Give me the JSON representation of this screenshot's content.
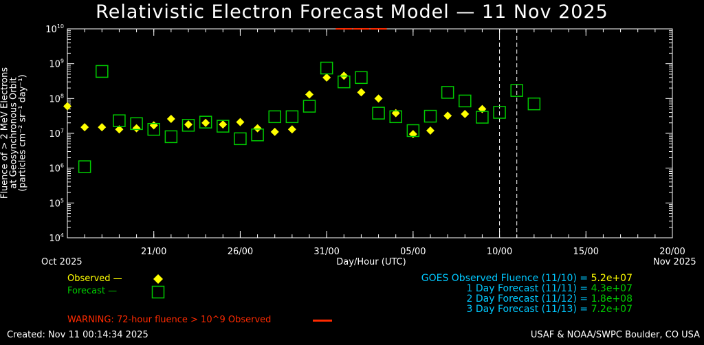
{
  "title": "Relativistic Electron Forecast Model — 11 Nov 2025",
  "ylabel_lines": [
    "Fluence of > 2 MeV Electrons",
    "at Geosynchronous Orbit",
    "(particles cm⁻² sr⁻¹ day⁻¹)"
  ],
  "xlabel": "Day/Hour (UTC)",
  "x_start_label": "Oct 2025",
  "x_end_label": "Nov 2025",
  "legend": {
    "observed_label": "Observed —",
    "forecast_label": "Forecast —"
  },
  "stats": {
    "goes": "GOES Observed Fluence (11/10) = ",
    "goes_value": "5.2e+07",
    "day1": "1 Day Forecast (11/11) = ",
    "day1_value": "4.3e+07",
    "day2": "2 Day Forecast (11/12) = ",
    "day2_value": "1.8e+08",
    "day3": "3 Day Forecast (11/13) = ",
    "day3_value": "7.2e+07"
  },
  "warning": "WARNING: 72-hour fluence > 10^9 Observed",
  "footer_left": "Created: Nov 11 00:14:34 2025",
  "footer_right": "USAF & NOAA/SWPC Boulder, CO USA",
  "colors": {
    "observed": "#ffff00",
    "forecast": "#00cc00",
    "warning": "#ff2a00",
    "stats_label": "#00c8ff",
    "goes_value": "#ffff00",
    "forecast_value": "#00cc00"
  },
  "chart_data": {
    "type": "scatter",
    "x_unit": "day of month (Oct 16 – Nov 20, 2025)",
    "xlim": [
      "2025-10-16",
      "2025-11-20"
    ],
    "ylim": [
      10000,
      10000000000
    ],
    "y_scale": "log",
    "x_ticks": [
      "21/00",
      "26/00",
      "31/00",
      "05/00",
      "10/00",
      "15/00",
      "20/00"
    ],
    "x_tick_dates": [
      "2025-10-21",
      "2025-10-26",
      "2025-10-31",
      "2025-11-05",
      "2025-11-10",
      "2025-11-15",
      "2025-11-20"
    ],
    "y_ticks": [
      "10^4",
      "10^5",
      "10^6",
      "10^7",
      "10^8",
      "10^9",
      "10^10"
    ],
    "y_tick_values": [
      10000,
      100000,
      1000000,
      10000000,
      100000000,
      1000000000,
      10000000000
    ],
    "vertical_markers": [
      "2025-11-10",
      "2025-11-11"
    ],
    "warning_bars": [
      "2025-11-01",
      "2025-11-02",
      "2025-11-03"
    ],
    "series": [
      {
        "name": "Observed",
        "marker": "diamond",
        "points": [
          [
            "2025-10-16",
            60000000.0
          ],
          [
            "2025-10-17",
            15000000.0
          ],
          [
            "2025-10-18",
            15000000.0
          ],
          [
            "2025-10-19",
            13000000.0
          ],
          [
            "2025-10-20",
            14000000.0
          ],
          [
            "2025-10-21",
            17000000.0
          ],
          [
            "2025-10-22",
            26000000.0
          ],
          [
            "2025-10-23",
            18000000.0
          ],
          [
            "2025-10-24",
            20000000.0
          ],
          [
            "2025-10-25",
            18000000.0
          ],
          [
            "2025-10-26",
            21000000.0
          ],
          [
            "2025-10-27",
            14000000.0
          ],
          [
            "2025-10-28",
            11000000.0
          ],
          [
            "2025-10-29",
            13000000.0
          ],
          [
            "2025-10-30",
            130000000.0
          ],
          [
            "2025-10-31",
            400000000.0
          ],
          [
            "2025-11-01",
            450000000.0
          ],
          [
            "2025-11-02",
            150000000.0
          ],
          [
            "2025-11-03",
            100000000.0
          ],
          [
            "2025-11-04",
            38000000.0
          ],
          [
            "2025-11-05",
            9500000.0
          ],
          [
            "2025-11-06",
            12000000.0
          ],
          [
            "2025-11-07",
            32000000.0
          ],
          [
            "2025-11-08",
            36000000.0
          ],
          [
            "2025-11-09",
            50000000.0
          ]
        ]
      },
      {
        "name": "Forecast",
        "marker": "square",
        "points": [
          [
            "2025-10-17",
            1100000.0
          ],
          [
            "2025-10-18",
            600000000.0
          ],
          [
            "2025-10-19",
            23000000.0
          ],
          [
            "2025-10-20",
            19000000.0
          ],
          [
            "2025-10-21",
            13000000.0
          ],
          [
            "2025-10-22",
            8000000.0
          ],
          [
            "2025-10-23",
            17000000.0
          ],
          [
            "2025-10-24",
            21000000.0
          ],
          [
            "2025-10-25",
            16000000.0
          ],
          [
            "2025-10-26",
            7000000.0
          ],
          [
            "2025-10-27",
            9000000.0
          ],
          [
            "2025-10-28",
            30000000.0
          ],
          [
            "2025-10-29",
            30000000.0
          ],
          [
            "2025-10-30",
            60000000.0
          ],
          [
            "2025-10-31",
            750000000.0
          ],
          [
            "2025-11-01",
            300000000.0
          ],
          [
            "2025-11-02",
            400000000.0
          ],
          [
            "2025-11-03",
            38000000.0
          ],
          [
            "2025-11-04",
            30000000.0
          ],
          [
            "2025-11-05",
            12000000.0
          ],
          [
            "2025-11-06",
            31000000.0
          ],
          [
            "2025-11-07",
            150000000.0
          ],
          [
            "2025-11-08",
            85000000.0
          ],
          [
            "2025-11-09",
            29000000.0
          ],
          [
            "2025-11-10",
            40000000.0
          ],
          [
            "2025-11-11",
            170000000.0
          ],
          [
            "2025-11-12",
            70000000.0
          ]
        ]
      }
    ]
  }
}
